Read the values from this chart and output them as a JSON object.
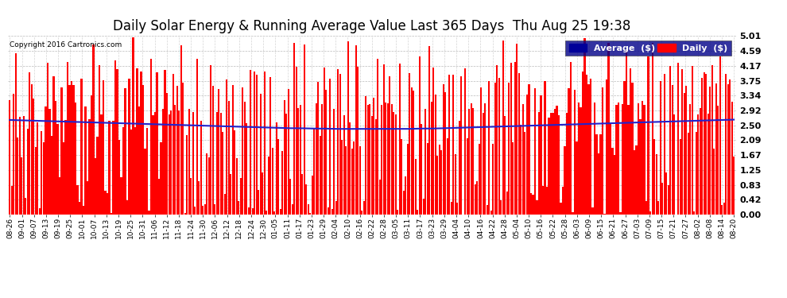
{
  "title": "Daily Solar Energy & Running Average Value Last 365 Days  Thu Aug 25 19:38",
  "copyright": "Copyright 2016 Cartronics.com",
  "ylim": [
    0.0,
    5.01
  ],
  "yticks": [
    0.0,
    0.42,
    0.83,
    1.25,
    1.67,
    2.09,
    2.5,
    2.92,
    3.34,
    3.75,
    4.17,
    4.59,
    5.01
  ],
  "bar_color": "#FF0000",
  "line_color": "#2222CC",
  "bg_color": "#FFFFFF",
  "grid_color": "#AAAAAA",
  "title_fontsize": 12,
  "legend_avg_color": "#000099",
  "legend_daily_color": "#FF0000",
  "x_labels": [
    "08-26",
    "09-01",
    "09-07",
    "09-13",
    "09-19",
    "09-25",
    "10-01",
    "10-07",
    "10-13",
    "10-19",
    "10-25",
    "10-31",
    "11-06",
    "11-12",
    "11-18",
    "11-24",
    "11-30",
    "12-06",
    "12-12",
    "12-18",
    "12-24",
    "12-30",
    "01-05",
    "01-11",
    "01-17",
    "01-23",
    "01-29",
    "02-04",
    "02-10",
    "02-16",
    "02-22",
    "02-28",
    "03-05",
    "03-11",
    "03-17",
    "03-23",
    "03-29",
    "04-04",
    "04-10",
    "04-16",
    "04-22",
    "04-28",
    "05-04",
    "05-10",
    "05-16",
    "05-22",
    "05-28",
    "06-03",
    "06-09",
    "06-15",
    "06-21",
    "06-27",
    "07-03",
    "07-09",
    "07-15",
    "07-21",
    "07-27",
    "08-02",
    "08-08",
    "08-14",
    "08-20"
  ],
  "avg_profile": [
    2.65,
    2.64,
    2.63,
    2.62,
    2.61,
    2.6,
    2.59,
    2.58,
    2.57,
    2.56,
    2.55,
    2.54,
    2.53,
    2.52,
    2.51,
    2.5,
    2.49,
    2.48,
    2.47,
    2.46,
    2.45,
    2.44,
    2.43,
    2.42,
    2.42,
    2.41,
    2.41,
    2.4,
    2.4,
    2.4,
    2.4,
    2.4,
    2.4,
    2.4,
    2.41,
    2.41,
    2.42,
    2.43,
    2.44,
    2.45,
    2.46,
    2.47,
    2.48,
    2.49,
    2.5,
    2.51,
    2.52,
    2.53,
    2.54,
    2.55,
    2.56,
    2.57,
    2.58,
    2.59,
    2.6,
    2.61,
    2.62,
    2.63,
    2.64,
    2.65,
    2.66
  ]
}
